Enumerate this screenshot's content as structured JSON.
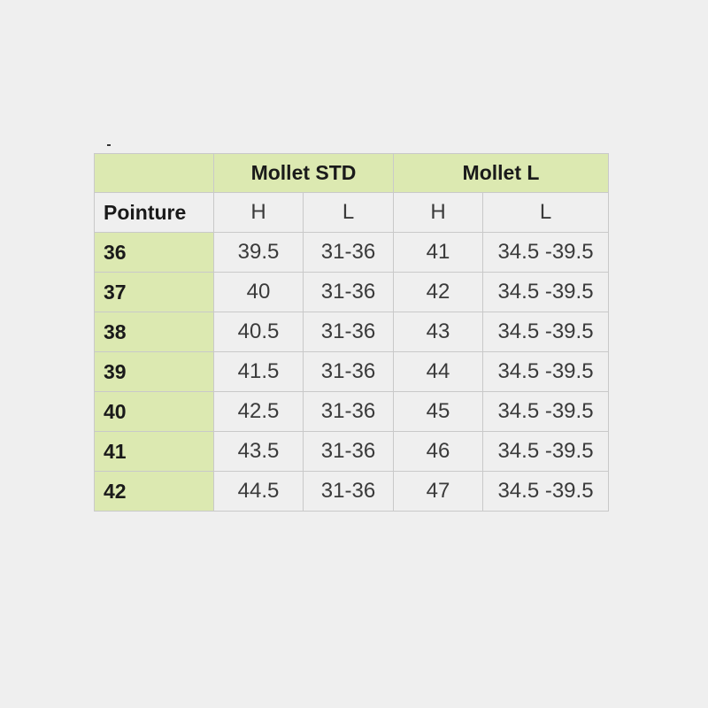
{
  "table": {
    "groups": [
      "Mollet STD",
      "Mollet L"
    ],
    "row_header_label": "Pointure",
    "sub_headers": [
      "H",
      "L",
      "H",
      "L"
    ],
    "rows": [
      {
        "pointure": "36",
        "cells": [
          "39.5",
          "31-36",
          "41",
          "34.5 -39.5"
        ]
      },
      {
        "pointure": "37",
        "cells": [
          "40",
          "31-36",
          "42",
          "34.5 -39.5"
        ]
      },
      {
        "pointure": "38",
        "cells": [
          "40.5",
          "31-36",
          "43",
          "34.5 -39.5"
        ]
      },
      {
        "pointure": "39",
        "cells": [
          "41.5",
          "31-36",
          "44",
          "34.5 -39.5"
        ]
      },
      {
        "pointure": "40",
        "cells": [
          "42.5",
          "31-36",
          "45",
          "34.5 -39.5"
        ]
      },
      {
        "pointure": "41",
        "cells": [
          "43.5",
          "31-36",
          "46",
          "34.5 -39.5"
        ]
      },
      {
        "pointure": "42",
        "cells": [
          "44.5",
          "31-36",
          "47",
          "34.5 -39.5"
        ]
      }
    ]
  },
  "colors": {
    "header_green": "#dce9b1",
    "background": "#efefef",
    "grid": "#c9c9c9"
  }
}
